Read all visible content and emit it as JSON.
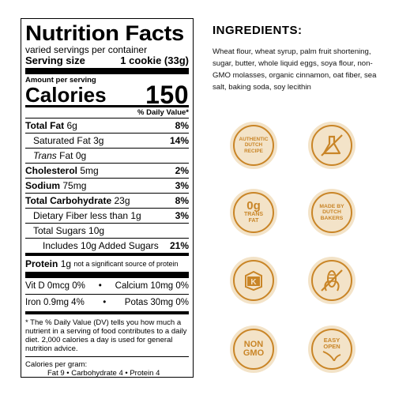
{
  "nutrition": {
    "title": "Nutrition Facts",
    "servings": "varied servings per container",
    "serving_size_label": "Serving size",
    "serving_size_value": "1 cookie (33g)",
    "amount_per_serving": "Amount per serving",
    "calories_label": "Calories",
    "calories_value": "150",
    "dv_header": "% Daily Value*",
    "rows": [
      {
        "name": "Total Fat",
        "amount": "6g",
        "dv": "8%"
      },
      {
        "name": "Saturated Fat",
        "amount": "3g",
        "dv": "14%"
      },
      {
        "name": "Trans",
        "amount": "Fat 0g",
        "dv": ""
      },
      {
        "name": "Cholesterol",
        "amount": "5mg",
        "dv": "2%"
      },
      {
        "name": "Sodium",
        "amount": "75mg",
        "dv": "3%"
      },
      {
        "name": "Total Carbohydrate",
        "amount": "23g",
        "dv": "8%"
      },
      {
        "name": "Dietary Fiber less than 1g",
        "amount": "",
        "dv": "3%"
      },
      {
        "name": "Total Sugars 10g",
        "amount": "",
        "dv": ""
      },
      {
        "name": "Includes 10g Added Sugars",
        "amount": "",
        "dv": "21%"
      },
      {
        "name": "Protein",
        "amount": "1g",
        "note": "not a significant source of protein"
      }
    ],
    "vitamins": [
      {
        "left": "Vit D 0mcg 0%",
        "sep": "•",
        "right": "Calcium 10mg 0%"
      },
      {
        "left": "Iron 0.9mg 4%",
        "sep": "•",
        "right": "Potas 30mg 0%"
      }
    ],
    "footnote": "* The % Daily Value (DV) tells you how much a nutrient in a serving of food contributes to a daily diet. 2,000 calories a day is used for general nutrition advice.",
    "cal_per_gram": "Calories per gram:",
    "cal_per_gram_values": "Fat 9 • Carbohydrate 4 • Protein 4"
  },
  "ingredients": {
    "title": "INGREDIENTS:",
    "text": "Wheat flour, wheat syrup, palm fruit shortening, sugar, butter, whole liquid eggs, soya flour, non-GMO molasses, organic cinnamon, oat fiber, sea salt, baking soda, soy lecithin"
  },
  "badges": {
    "authentic_dutch_recipe": "AUTHENTIC DUTCH RECIPE",
    "zero_g": "0g",
    "trans_fat": "TRANS FAT",
    "made_by_dutch_bakers": "MADE BY DUTCH BAKERS",
    "non_gmo": "NON GMO",
    "easy_open": "EASY OPEN",
    "kosher_mark": "K",
    "no_artificial_icon": "crossed-flask-icon",
    "kosher_icon": "kosher-icon",
    "no_corn_syrup_icon": "crossed-corn-icon",
    "accent_color": "#c98527",
    "badge_bg": "#f3e3c8"
  }
}
